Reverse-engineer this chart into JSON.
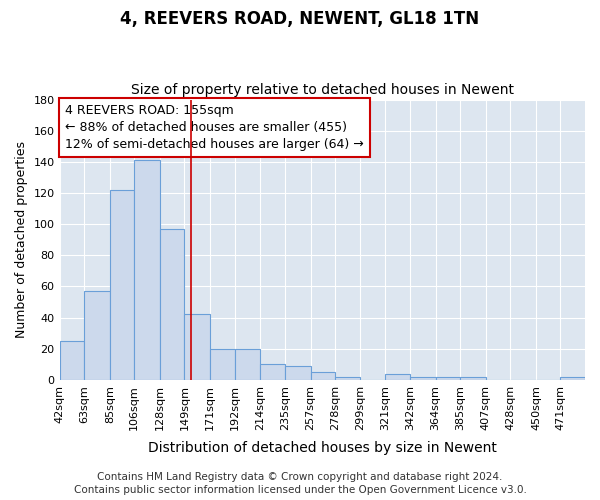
{
  "title": "4, REEVERS ROAD, NEWENT, GL18 1TN",
  "subtitle": "Size of property relative to detached houses in Newent",
  "xlabel": "Distribution of detached houses by size in Newent",
  "ylabel": "Number of detached properties",
  "bin_edges": [
    42,
    63,
    85,
    106,
    128,
    149,
    171,
    192,
    214,
    235,
    257,
    278,
    299,
    321,
    342,
    364,
    385,
    407,
    428,
    450,
    471,
    492
  ],
  "bar_heights": [
    25,
    57,
    122,
    141,
    97,
    42,
    20,
    20,
    10,
    9,
    5,
    2,
    0,
    4,
    2,
    2,
    2,
    0,
    0,
    0,
    2
  ],
  "bar_color": "#ccd9ec",
  "bar_edge_color": "#6a9fd8",
  "background_color": "#dde6f0",
  "grid_color": "#ffffff",
  "vline_x": 155,
  "vline_color": "#cc0000",
  "annotation_text": "4 REEVERS ROAD: 155sqm\n← 88% of detached houses are smaller (455)\n12% of semi-detached houses are larger (64) →",
  "annotation_box_facecolor": "#ffffff",
  "annotation_box_edgecolor": "#cc0000",
  "ylim": [
    0,
    180
  ],
  "yticks": [
    0,
    20,
    40,
    60,
    80,
    100,
    120,
    140,
    160,
    180
  ],
  "footer_text": "Contains HM Land Registry data © Crown copyright and database right 2024.\nContains public sector information licensed under the Open Government Licence v3.0.",
  "title_fontsize": 12,
  "subtitle_fontsize": 10,
  "xlabel_fontsize": 10,
  "ylabel_fontsize": 9,
  "tick_fontsize": 8,
  "annotation_fontsize": 9,
  "footer_fontsize": 7.5
}
